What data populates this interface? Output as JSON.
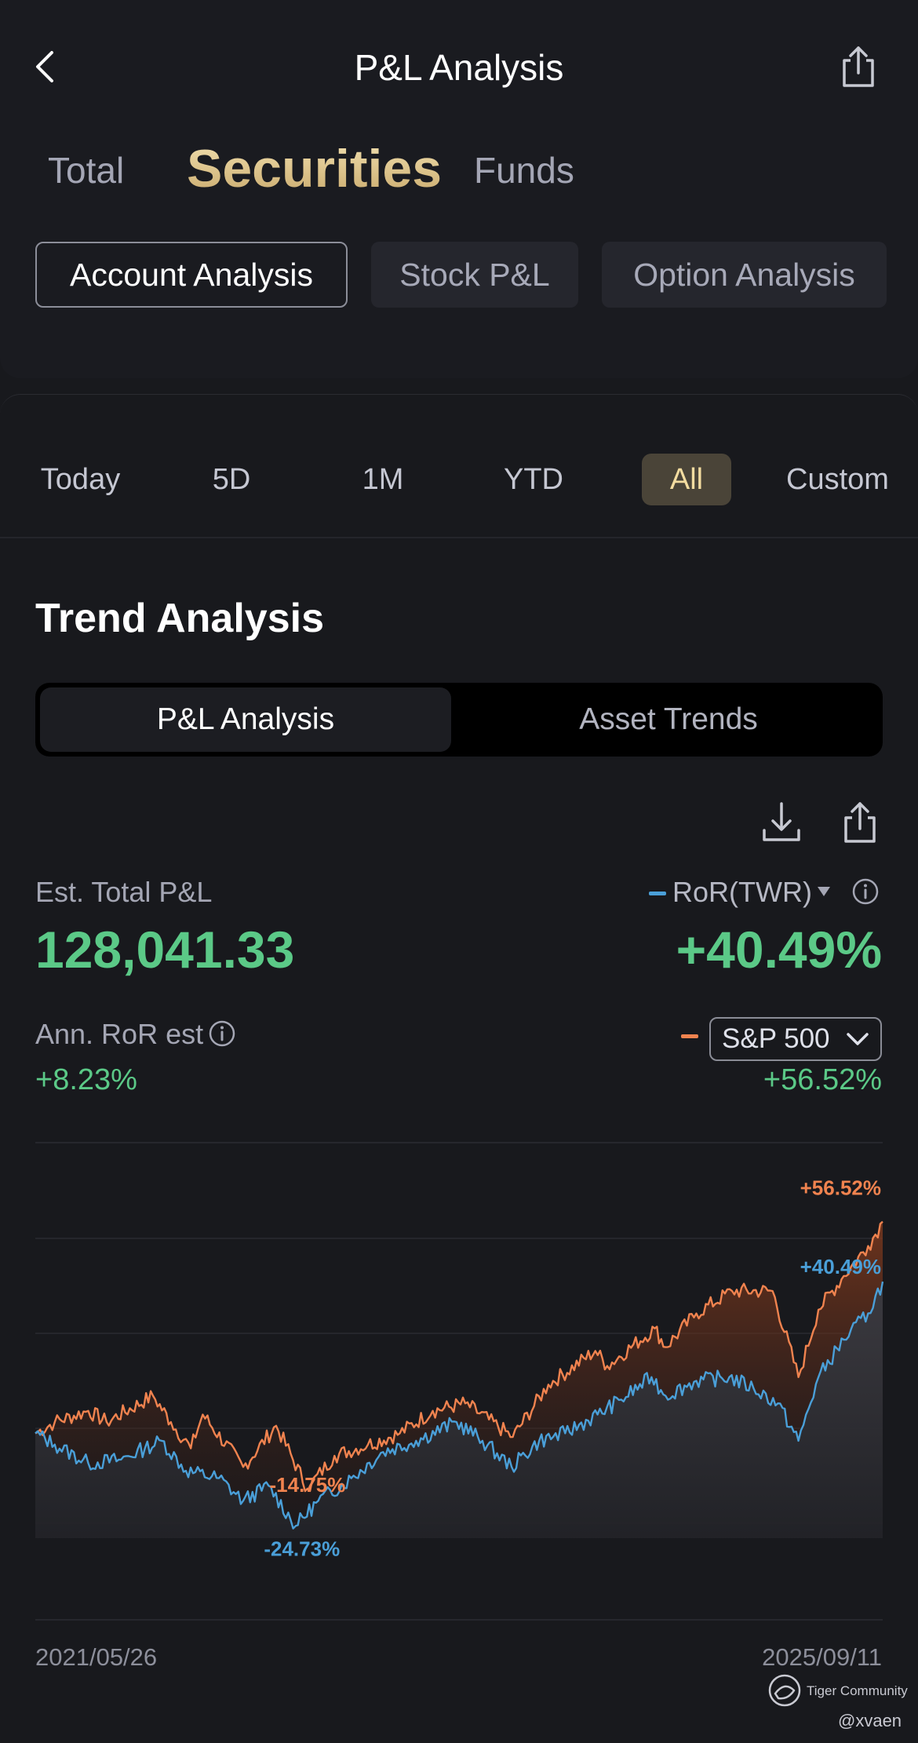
{
  "header": {
    "title": "P&L Analysis"
  },
  "category_tabs": [
    {
      "label": "Total",
      "active": false
    },
    {
      "label": "Securities",
      "active": true
    },
    {
      "label": "Funds",
      "active": false
    }
  ],
  "sub_tabs": [
    {
      "label": "Account Analysis",
      "active": true
    },
    {
      "label": "Stock P&L",
      "active": false
    },
    {
      "label": "Option Analysis",
      "active": false
    }
  ],
  "periods": [
    {
      "label": "Today",
      "active": false
    },
    {
      "label": "5D",
      "active": false
    },
    {
      "label": "1M",
      "active": false
    },
    {
      "label": "YTD",
      "active": false
    },
    {
      "label": "All",
      "active": true
    },
    {
      "label": "Custom",
      "active": false
    }
  ],
  "trend": {
    "title": "Trend Analysis",
    "segments": [
      {
        "label": "P&L Analysis",
        "active": true
      },
      {
        "label": "Asset Trends",
        "active": false
      }
    ]
  },
  "summary": {
    "total_label": "Est. Total P&L",
    "total_value": "128,041.33",
    "ror_label": "RoR(TWR)",
    "ror_value": "+40.49%",
    "ann_label": "Ann. RoR est",
    "ann_value": "+8.23%",
    "benchmark_label": "S&P 500",
    "benchmark_value": "+56.52%"
  },
  "colors": {
    "gain_green": "#5bc987",
    "account_line": "#4a9fd8",
    "benchmark_line": "#f0834f",
    "accent_gold": "#f3dca0"
  },
  "chart_data": {
    "type": "line",
    "x_start": "2021/05/26",
    "x_end": "2025/09/11",
    "y_unit": "%",
    "series": [
      {
        "name": "RoR(TWR)",
        "color": "#4a9fd8",
        "points": [
          [
            "2021/05/26",
            0
          ],
          [
            "2021/07/01",
            -3
          ],
          [
            "2021/09/01",
            -8
          ],
          [
            "2021/11/01",
            -7
          ],
          [
            "2021/12/15",
            -4
          ],
          [
            "2022/01/15",
            -2
          ],
          [
            "2022/03/01",
            -10
          ],
          [
            "2022/05/01",
            -12
          ],
          [
            "2022/06/15",
            -18
          ],
          [
            "2022/08/01",
            -14
          ],
          [
            "2022/09/20",
            -24.73
          ],
          [
            "2022/11/01",
            -18
          ],
          [
            "2023/01/01",
            -12
          ],
          [
            "2023/03/01",
            -5
          ],
          [
            "2023/05/01",
            -2
          ],
          [
            "2023/07/15",
            3
          ],
          [
            "2023/09/01",
            -2
          ],
          [
            "2023/10/25",
            -9
          ],
          [
            "2023/12/15",
            -2
          ],
          [
            "2024/02/01",
            0
          ],
          [
            "2024/04/01",
            5
          ],
          [
            "2024/05/15",
            9
          ],
          [
            "2024/07/10",
            15
          ],
          [
            "2024/08/05",
            10
          ],
          [
            "2024/10/01",
            14
          ],
          [
            "2024/12/01",
            15
          ],
          [
            "2025/01/15",
            12
          ],
          [
            "2025/03/01",
            8
          ],
          [
            "2025/04/08",
            -2
          ],
          [
            "2025/05/15",
            15
          ],
          [
            "2025/07/01",
            25
          ],
          [
            "2025/08/15",
            32
          ],
          [
            "2025/09/11",
            40.49
          ]
        ],
        "annotations": [
          {
            "label": "-24.73%",
            "x": "2022/09/20",
            "y": -24.73
          },
          {
            "label": "+40.49%",
            "x": "2025/09/11",
            "y": 40.49
          }
        ]
      },
      {
        "name": "S&P 500",
        "color": "#f0834f",
        "points": [
          [
            "2021/05/26",
            0
          ],
          [
            "2021/07/01",
            3
          ],
          [
            "2021/09/01",
            6
          ],
          [
            "2021/10/05",
            3
          ],
          [
            "2021/12/30",
            10
          ],
          [
            "2022/02/01",
            3
          ],
          [
            "2022/03/10",
            -4
          ],
          [
            "2022/04/01",
            5
          ],
          [
            "2022/06/15",
            -9
          ],
          [
            "2022/08/15",
            2
          ],
          [
            "2022/10/12",
            -14.75
          ],
          [
            "2022/12/01",
            -6
          ],
          [
            "2023/02/01",
            -3
          ],
          [
            "2023/04/01",
            0
          ],
          [
            "2023/06/01",
            6
          ],
          [
            "2023/07/31",
            8
          ],
          [
            "2023/10/27",
            -1
          ],
          [
            "2024/01/01",
            13
          ],
          [
            "2024/03/28",
            22
          ],
          [
            "2024/04/19",
            18
          ],
          [
            "2024/07/16",
            28
          ],
          [
            "2024/08/05",
            23
          ],
          [
            "2024/10/01",
            32
          ],
          [
            "2024/12/06",
            38
          ],
          [
            "2025/02/19",
            38
          ],
          [
            "2025/04/08",
            15
          ],
          [
            "2025/05/15",
            33
          ],
          [
            "2025/07/01",
            42
          ],
          [
            "2025/08/15",
            50
          ],
          [
            "2025/09/11",
            56.52
          ]
        ],
        "annotations": [
          {
            "label": "-14.75%",
            "x": "2022/10/12",
            "y": -14.75
          },
          {
            "label": "+56.52%",
            "x": "2025/09/11",
            "y": 56.52
          }
        ]
      }
    ],
    "x_labels": [
      "2021/05/26",
      "2025/09/11"
    ],
    "grid": true
  },
  "watermark": {
    "brand": "Tiger Community",
    "user": "@xvaen"
  }
}
